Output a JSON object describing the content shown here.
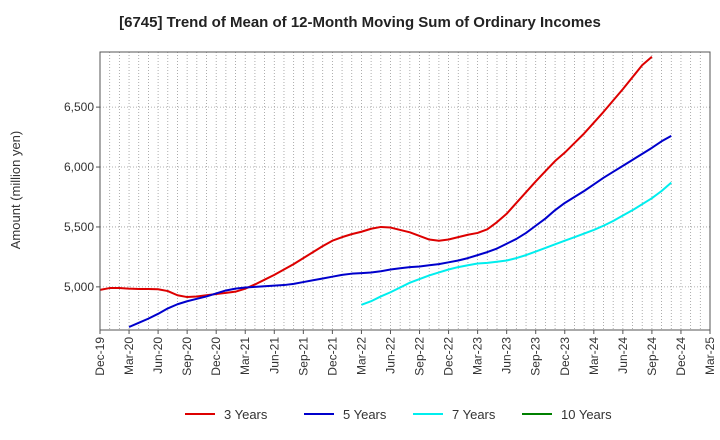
{
  "chart_data": {
    "type": "line",
    "title": "[6745]  Trend of Mean of 12-Month Moving Sum of Ordinary Incomes",
    "xlabel": "",
    "ylabel": "Amount (million yen)",
    "ylim": [
      4640,
      6960
    ],
    "yticks": [
      5000,
      5500,
      6000,
      6500
    ],
    "ytick_labels": [
      "5,000",
      "5,500",
      "6,000",
      "6,500"
    ],
    "x_tick_labels": [
      "Dec-19",
      "Mar-20",
      "Jun-20",
      "Sep-20",
      "Dec-20",
      "Mar-21",
      "Jun-21",
      "Sep-21",
      "Dec-21",
      "Mar-22",
      "Jun-22",
      "Sep-22",
      "Dec-22",
      "Mar-23",
      "Jun-23",
      "Sep-23",
      "Dec-23",
      "Mar-24",
      "Jun-24",
      "Sep-24",
      "Dec-24",
      "Mar-25"
    ],
    "grid": true,
    "legend_position": "bottom",
    "series": [
      {
        "name": "3 Years",
        "color": "#dd0000",
        "start_index": 0,
        "values": [
          4975,
          4990,
          4990,
          4985,
          4982,
          4982,
          4980,
          4965,
          4930,
          4915,
          4920,
          4930,
          4940,
          4950,
          4960,
          4985,
          5020,
          5060,
          5100,
          5145,
          5190,
          5240,
          5290,
          5340,
          5385,
          5415,
          5440,
          5460,
          5485,
          5500,
          5495,
          5475,
          5455,
          5425,
          5395,
          5385,
          5395,
          5415,
          5435,
          5450,
          5480,
          5540,
          5610,
          5700,
          5790,
          5880,
          5965,
          6050,
          6120,
          6200,
          6280,
          6370,
          6460,
          6555,
          6650,
          6750,
          6850,
          6920
        ]
      },
      {
        "name": "5 Years",
        "color": "#0000cc",
        "start_index": 3,
        "values": [
          4665,
          4700,
          4735,
          4775,
          4820,
          4855,
          4880,
          4900,
          4920,
          4945,
          4970,
          4985,
          4995,
          5000,
          5005,
          5010,
          5015,
          5025,
          5040,
          5055,
          5070,
          5085,
          5100,
          5110,
          5115,
          5120,
          5130,
          5145,
          5155,
          5165,
          5170,
          5180,
          5190,
          5205,
          5220,
          5240,
          5265,
          5290,
          5320,
          5360,
          5400,
          5450,
          5510,
          5570,
          5640,
          5700,
          5750,
          5800,
          5855,
          5910,
          5960,
          6010,
          6060,
          6110,
          6160,
          6215,
          6260
        ]
      },
      {
        "name": "7 Years",
        "color": "#00eeee",
        "start_index": 27,
        "values": [
          4850,
          4880,
          4920,
          4955,
          4995,
          5035,
          5065,
          5095,
          5120,
          5145,
          5165,
          5180,
          5195,
          5200,
          5210,
          5220,
          5240,
          5265,
          5295,
          5325,
          5355,
          5385,
          5415,
          5445,
          5475,
          5510,
          5550,
          5595,
          5640,
          5690,
          5740,
          5800,
          5870
        ]
      },
      {
        "name": "10 Years",
        "color": "#008000",
        "start_index": 0,
        "values": []
      }
    ]
  }
}
